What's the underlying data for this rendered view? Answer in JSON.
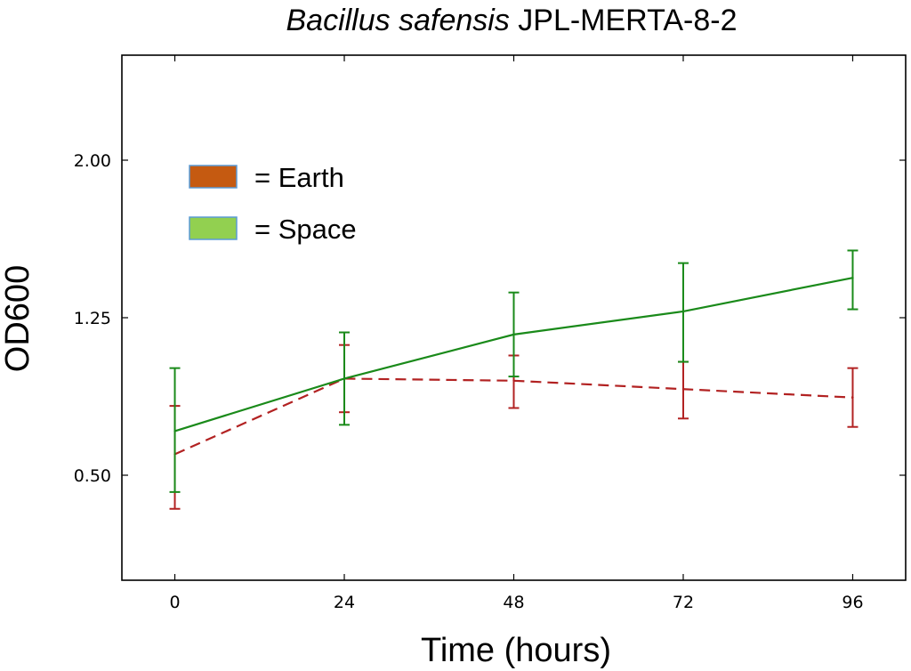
{
  "colors": {
    "earth_line": "#b22222",
    "earth_swatch": "#c55a11",
    "space_line": "#1a8a1a",
    "space_swatch": "#92d050",
    "swatch_border": "#5b9bd5",
    "axes": "#000000"
  },
  "chart_data": {
    "type": "line",
    "title_italic": "Bacillus safensis",
    "title_rest": " JPL-MERTA-8-2",
    "xlabel": "Time (hours)",
    "ylabel": "OD600",
    "x": [
      0,
      24,
      48,
      72,
      96
    ],
    "xticks": [
      "0",
      "24",
      "48",
      "72",
      "96"
    ],
    "yticks": [
      "0.50",
      "1.25",
      "2.00"
    ],
    "ytick_values": [
      0.5,
      1.25,
      2.0
    ],
    "xlim": [
      -7.5,
      103.5
    ],
    "ylim": [
      0.0,
      2.5
    ],
    "grid": false,
    "legend_position": "upper-left",
    "series": [
      {
        "name": "Earth",
        "legend_label": "= Earth",
        "style": "dashed",
        "color_key": "earth_line",
        "swatch_key": "earth_swatch",
        "values": [
          0.6,
          0.96,
          0.95,
          0.91,
          0.87
        ],
        "err_low": [
          0.34,
          0.8,
          0.82,
          0.77,
          0.73
        ],
        "err_high": [
          0.83,
          1.12,
          1.07,
          1.04,
          1.01
        ]
      },
      {
        "name": "Space",
        "legend_label": "= Space",
        "style": "solid",
        "color_key": "space_line",
        "swatch_key": "space_swatch",
        "values": [
          0.71,
          0.96,
          1.17,
          1.28,
          1.44
        ],
        "err_low": [
          0.42,
          0.74,
          0.97,
          1.04,
          1.29
        ],
        "err_high": [
          1.01,
          1.18,
          1.37,
          1.51,
          1.57
        ]
      }
    ]
  }
}
